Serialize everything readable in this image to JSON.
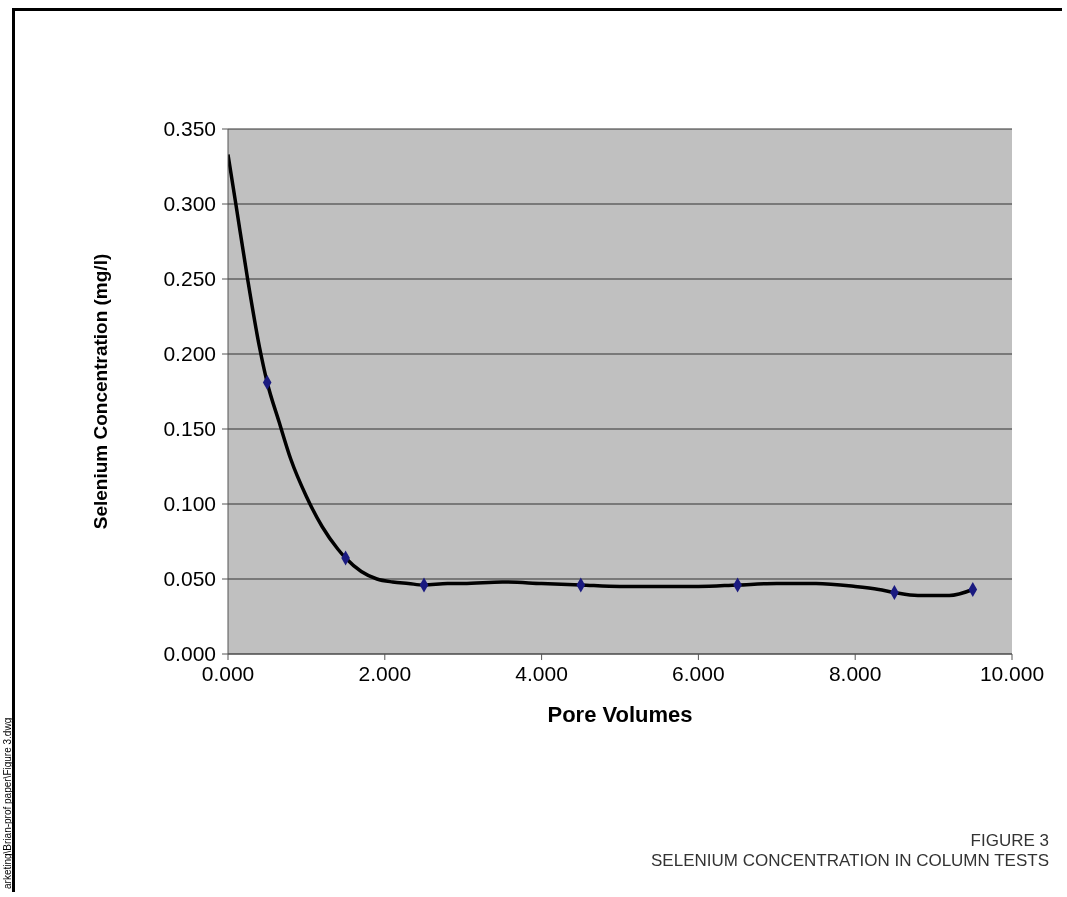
{
  "chart_data": {
    "type": "line",
    "title": "FIGURE 3",
    "subtitle": "SELENIUM CONCENTRATION IN COLUMN TESTS",
    "xlabel": "Pore Volumes",
    "ylabel": "Selenium Concentration (mg/l)",
    "series": [
      {
        "color": "#000000",
        "marker": "none",
        "x": [
          0,
          0.1,
          0.25,
          0.4,
          0.5,
          0.65,
          0.8,
          1.0,
          1.2,
          1.4,
          1.5,
          1.7,
          1.9,
          2.1,
          2.3,
          2.5,
          2.8,
          3.0,
          3.5,
          4.0,
          4.5,
          5.0,
          6.0,
          6.5,
          7.0,
          7.5,
          8.0,
          8.3,
          8.5,
          8.8,
          9.0,
          9.2,
          9.5
        ],
        "values": [
          0.333,
          0.3,
          0.25,
          0.205,
          0.181,
          0.155,
          0.13,
          0.105,
          0.085,
          0.07,
          0.064,
          0.055,
          0.05,
          0.048,
          0.047,
          0.046,
          0.047,
          0.047,
          0.048,
          0.047,
          0.046,
          0.045,
          0.045,
          0.046,
          0.047,
          0.047,
          0.045,
          0.043,
          0.041,
          0.039,
          0.039,
          0.039,
          0.043
        ]
      },
      {
        "type": "scatter",
        "color": "#1a1a80",
        "marker": "diamond",
        "x": [
          0.5,
          1.5,
          2.5,
          4.5,
          6.5,
          8.5,
          9.5
        ],
        "values": [
          0.181,
          0.064,
          0.046,
          0.046,
          0.046,
          0.041,
          0.043
        ]
      }
    ],
    "xlim": [
      0,
      10
    ],
    "xticks": [
      {
        "value": 0,
        "label": "0.000"
      },
      {
        "value": 2,
        "label": "2.000"
      },
      {
        "value": 4,
        "label": "4.000"
      },
      {
        "value": 6,
        "label": "6.000"
      },
      {
        "value": 8,
        "label": "8.000"
      },
      {
        "value": 10,
        "label": "10.000"
      }
    ],
    "ylim": [
      0,
      0.35
    ],
    "yticks": [
      {
        "value": 0,
        "label": "0.000"
      },
      {
        "value": 0.05,
        "label": "0.050"
      },
      {
        "value": 0.1,
        "label": "0.100"
      },
      {
        "value": 0.15,
        "label": "0.150"
      },
      {
        "value": 0.2,
        "label": "0.200"
      },
      {
        "value": 0.25,
        "label": "0.250"
      },
      {
        "value": 0.3,
        "label": "0.300"
      },
      {
        "value": 0.35,
        "label": "0.350"
      }
    ],
    "grid": "y",
    "legend": false,
    "annotations": [
      "arketing\\Brian-prof paper\\Figure 3.dwg"
    ]
  }
}
